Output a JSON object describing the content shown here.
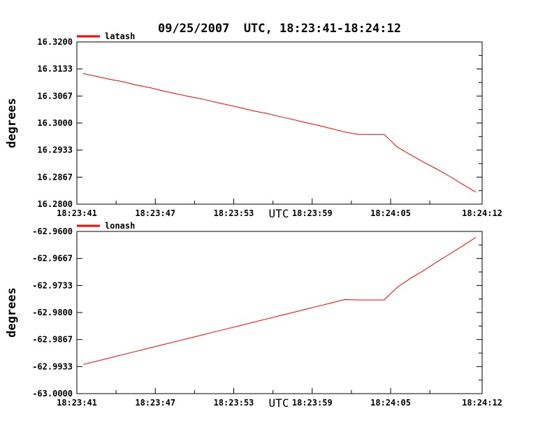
{
  "title": "09/25/2007  UTC, 18:23:41-18:24:12",
  "chart_data": [
    {
      "type": "line",
      "title": "",
      "xlabel": "UTC",
      "ylabel": "degrees",
      "x_ticks": [
        "18:23:41",
        "18:23:47",
        "18:23:53",
        "18:23:59",
        "18:24:05",
        "18:24:12"
      ],
      "x_tick_seconds": [
        0,
        6,
        12,
        18,
        24,
        31
      ],
      "ylim": [
        16.28,
        16.32
      ],
      "y_ticks": [
        "16.2800",
        "16.2867",
        "16.2933",
        "16.3000",
        "16.3067",
        "16.3133",
        "16.3200"
      ],
      "grid": false,
      "legend": "top-left",
      "series": [
        {
          "name": "latash",
          "color": "#ff0000",
          "x_seconds": [
            0.5,
            1.5,
            2.5,
            3.5,
            4.5,
            5.5,
            6.5,
            7.5,
            8.5,
            9.5,
            10.5,
            11.5,
            12.5,
            13.5,
            14.5,
            15.5,
            16.5,
            17.5,
            18.5,
            19.5,
            20.5,
            21.5,
            22.5,
            23.5,
            24.5,
            25.5,
            26.5,
            27.5,
            28.5,
            29.5,
            30.5
          ],
          "values": [
            16.3122,
            16.3115,
            16.3108,
            16.3102,
            16.3094,
            16.3088,
            16.308,
            16.3073,
            16.3066,
            16.306,
            16.3052,
            16.3045,
            16.3038,
            16.303,
            16.3024,
            16.3016,
            16.3009,
            16.3001,
            16.2994,
            16.2986,
            16.2978,
            16.2972,
            16.2972,
            16.2972,
            16.2941,
            16.2922,
            16.2904,
            16.2887,
            16.2869,
            16.2849,
            16.283
          ]
        }
      ]
    },
    {
      "type": "line",
      "title": "",
      "xlabel": "UTC",
      "ylabel": "degrees",
      "x_ticks": [
        "18:23:41",
        "18:23:47",
        "18:23:53",
        "18:23:59",
        "18:24:05",
        "18:24:12"
      ],
      "x_tick_seconds": [
        0,
        6,
        12,
        18,
        24,
        31
      ],
      "ylim": [
        -63.0,
        -62.96
      ],
      "y_ticks": [
        "-63.0000",
        "-62.9933",
        "-62.9867",
        "-62.9800",
        "-62.9733",
        "-62.9667",
        "-62.9600"
      ],
      "grid": false,
      "legend": "top-left",
      "series": [
        {
          "name": "lonash",
          "color": "#ff0000",
          "x_seconds": [
            0.5,
            1.5,
            2.5,
            3.5,
            4.5,
            5.5,
            6.5,
            7.5,
            8.5,
            9.5,
            10.5,
            11.5,
            12.5,
            13.5,
            14.5,
            15.5,
            16.5,
            17.5,
            18.5,
            19.5,
            20.5,
            21.5,
            22.5,
            23.5,
            24.5,
            25.5,
            26.5,
            27.5,
            28.5,
            29.5,
            30.5
          ],
          "values": [
            -62.9928,
            -62.992,
            -62.9912,
            -62.9904,
            -62.9896,
            -62.9888,
            -62.988,
            -62.9872,
            -62.9864,
            -62.9856,
            -62.9848,
            -62.984,
            -62.9832,
            -62.9824,
            -62.9816,
            -62.9808,
            -62.98,
            -62.9792,
            -62.9784,
            -62.9776,
            -62.9768,
            -62.9769,
            -62.9769,
            -62.9769,
            -62.9738,
            -62.9716,
            -62.9697,
            -62.9676,
            -62.9656,
            -62.9636,
            -62.9615
          ]
        }
      ]
    }
  ]
}
